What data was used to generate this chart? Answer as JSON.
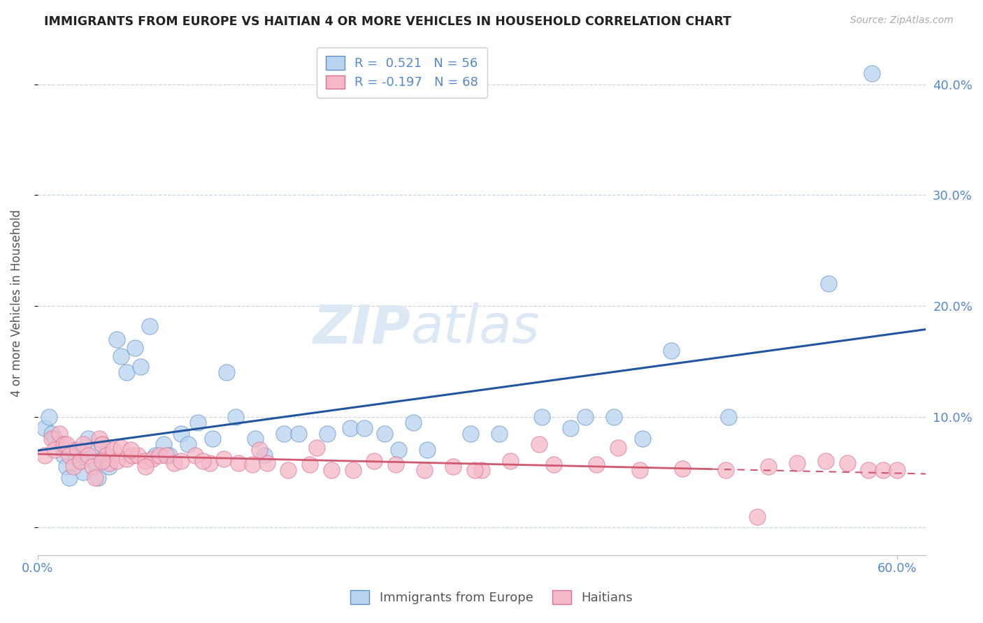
{
  "title": "IMMIGRANTS FROM EUROPE VS HAITIAN 4 OR MORE VEHICLES IN HOUSEHOLD CORRELATION CHART",
  "source": "Source: ZipAtlas.com",
  "ylabel": "4 or more Vehicles in Household",
  "xlim": [
    0.0,
    0.62
  ],
  "ylim": [
    -0.025,
    0.43
  ],
  "yticks": [
    0.0,
    0.1,
    0.2,
    0.3,
    0.4
  ],
  "ytick_labels": [
    "",
    "10.0%",
    "20.0%",
    "30.0%",
    "40.0%"
  ],
  "blue_label": "Immigrants from Europe",
  "pink_label": "Haitians",
  "blue_R": 0.521,
  "blue_N": 56,
  "pink_R": -0.197,
  "pink_N": 68,
  "blue_color": "#b8d4ee",
  "pink_color": "#f5b8c8",
  "blue_edge_color": "#6090c8",
  "pink_edge_color": "#d87090",
  "blue_line_color": "#2255a0",
  "pink_line_color": "#d05870",
  "background_color": "#ffffff",
  "watermark_color": "#dde8f5",
  "grid_color": "#c8d4e4",
  "tick_label_color": "#5588cc",
  "blue_scatter_x": [
    0.005,
    0.008,
    0.01,
    0.012,
    0.015,
    0.018,
    0.02,
    0.022,
    0.025,
    0.027,
    0.03,
    0.032,
    0.035,
    0.038,
    0.04,
    0.042,
    0.045,
    0.048,
    0.05,
    0.055,
    0.058,
    0.062,
    0.068,
    0.072,
    0.078,
    0.082,
    0.088,
    0.092,
    0.1,
    0.105,
    0.112,
    0.122,
    0.132,
    0.138,
    0.152,
    0.158,
    0.172,
    0.182,
    0.202,
    0.218,
    0.228,
    0.242,
    0.252,
    0.262,
    0.272,
    0.302,
    0.322,
    0.352,
    0.372,
    0.382,
    0.402,
    0.422,
    0.442,
    0.482,
    0.552,
    0.582
  ],
  "blue_scatter_y": [
    0.09,
    0.1,
    0.085,
    0.08,
    0.075,
    0.065,
    0.055,
    0.045,
    0.07,
    0.065,
    0.06,
    0.05,
    0.08,
    0.07,
    0.06,
    0.045,
    0.075,
    0.065,
    0.055,
    0.17,
    0.155,
    0.14,
    0.162,
    0.145,
    0.182,
    0.065,
    0.075,
    0.065,
    0.085,
    0.075,
    0.095,
    0.08,
    0.14,
    0.1,
    0.08,
    0.065,
    0.085,
    0.085,
    0.085,
    0.09,
    0.09,
    0.085,
    0.07,
    0.095,
    0.07,
    0.085,
    0.085,
    0.1,
    0.09,
    0.1,
    0.1,
    0.08,
    0.16,
    0.1,
    0.22,
    0.41
  ],
  "pink_scatter_x": [
    0.005,
    0.01,
    0.012,
    0.015,
    0.018,
    0.02,
    0.022,
    0.025,
    0.028,
    0.03,
    0.032,
    0.035,
    0.038,
    0.04,
    0.043,
    0.045,
    0.048,
    0.05,
    0.053,
    0.055,
    0.058,
    0.062,
    0.066,
    0.07,
    0.075,
    0.08,
    0.085,
    0.09,
    0.095,
    0.1,
    0.11,
    0.12,
    0.13,
    0.14,
    0.15,
    0.16,
    0.175,
    0.19,
    0.205,
    0.22,
    0.235,
    0.25,
    0.27,
    0.29,
    0.31,
    0.33,
    0.36,
    0.39,
    0.42,
    0.45,
    0.48,
    0.51,
    0.53,
    0.55,
    0.565,
    0.58,
    0.59,
    0.6,
    0.195,
    0.305,
    0.405,
    0.502,
    0.35,
    0.155,
    0.065,
    0.045,
    0.075,
    0.115
  ],
  "pink_scatter_y": [
    0.065,
    0.08,
    0.07,
    0.085,
    0.075,
    0.075,
    0.065,
    0.055,
    0.07,
    0.06,
    0.075,
    0.065,
    0.055,
    0.045,
    0.08,
    0.075,
    0.065,
    0.058,
    0.07,
    0.06,
    0.072,
    0.062,
    0.065,
    0.065,
    0.06,
    0.062,
    0.065,
    0.065,
    0.058,
    0.06,
    0.065,
    0.058,
    0.062,
    0.058,
    0.057,
    0.058,
    0.052,
    0.057,
    0.052,
    0.052,
    0.06,
    0.057,
    0.052,
    0.055,
    0.052,
    0.06,
    0.057,
    0.057,
    0.052,
    0.053,
    0.052,
    0.055,
    0.058,
    0.06,
    0.058,
    0.052,
    0.052,
    0.052,
    0.072,
    0.052,
    0.072,
    0.01,
    0.075,
    0.07,
    0.07,
    0.06,
    0.055,
    0.06
  ]
}
